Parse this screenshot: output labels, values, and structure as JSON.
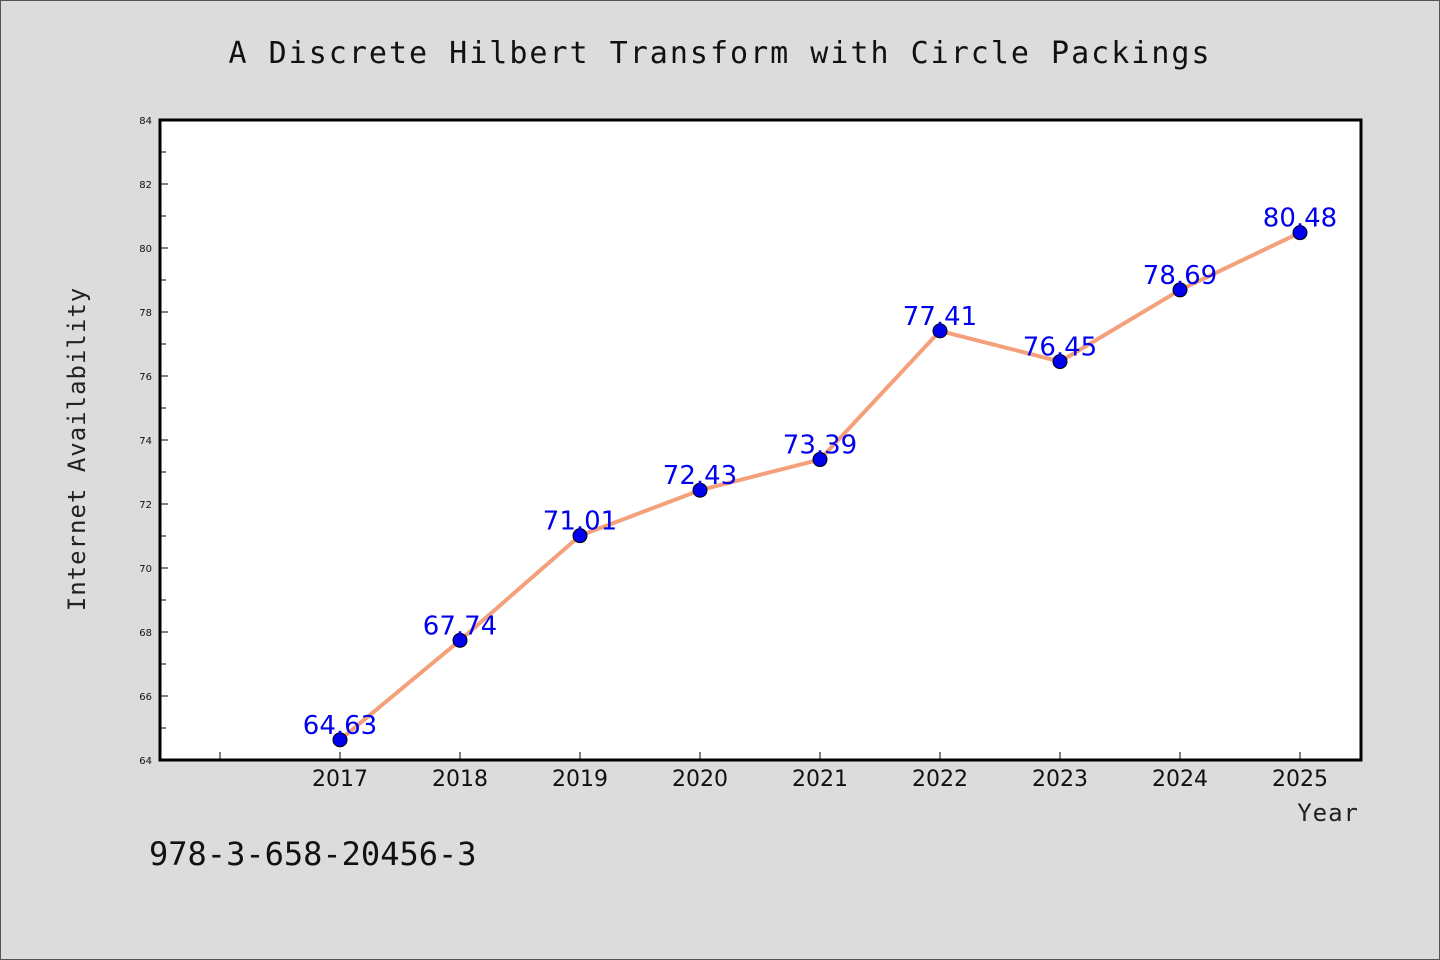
{
  "chart_data": {
    "type": "line",
    "title": "A Discrete Hilbert Transform with Circle Packings",
    "xlabel": "Year",
    "ylabel": "Internet Availability",
    "categories": [
      "2017",
      "2018",
      "2019",
      "2020",
      "2021",
      "2022",
      "2023",
      "2024",
      "2025"
    ],
    "series": [
      {
        "values": [
          64.63,
          67.74,
          71.01,
          72.43,
          73.39,
          77.41,
          76.45,
          78.69,
          80.48
        ],
        "labels": [
          "64.63",
          "67.74",
          "71.01",
          "72.43",
          "73.39",
          "77.41",
          "76.45",
          "78.69",
          "80.48"
        ]
      }
    ],
    "ylim": [
      64,
      84
    ],
    "yticks": [
      "64",
      "66",
      "68",
      "70",
      "72",
      "74",
      "76",
      "78",
      "80",
      "82",
      "84"
    ],
    "grid": false,
    "legend": "none",
    "line_color": "#f4a07a",
    "marker_color": "#0000ee",
    "label_color": "#0000ee"
  },
  "footer": {
    "isbn": "978-3-658-20456-3"
  }
}
